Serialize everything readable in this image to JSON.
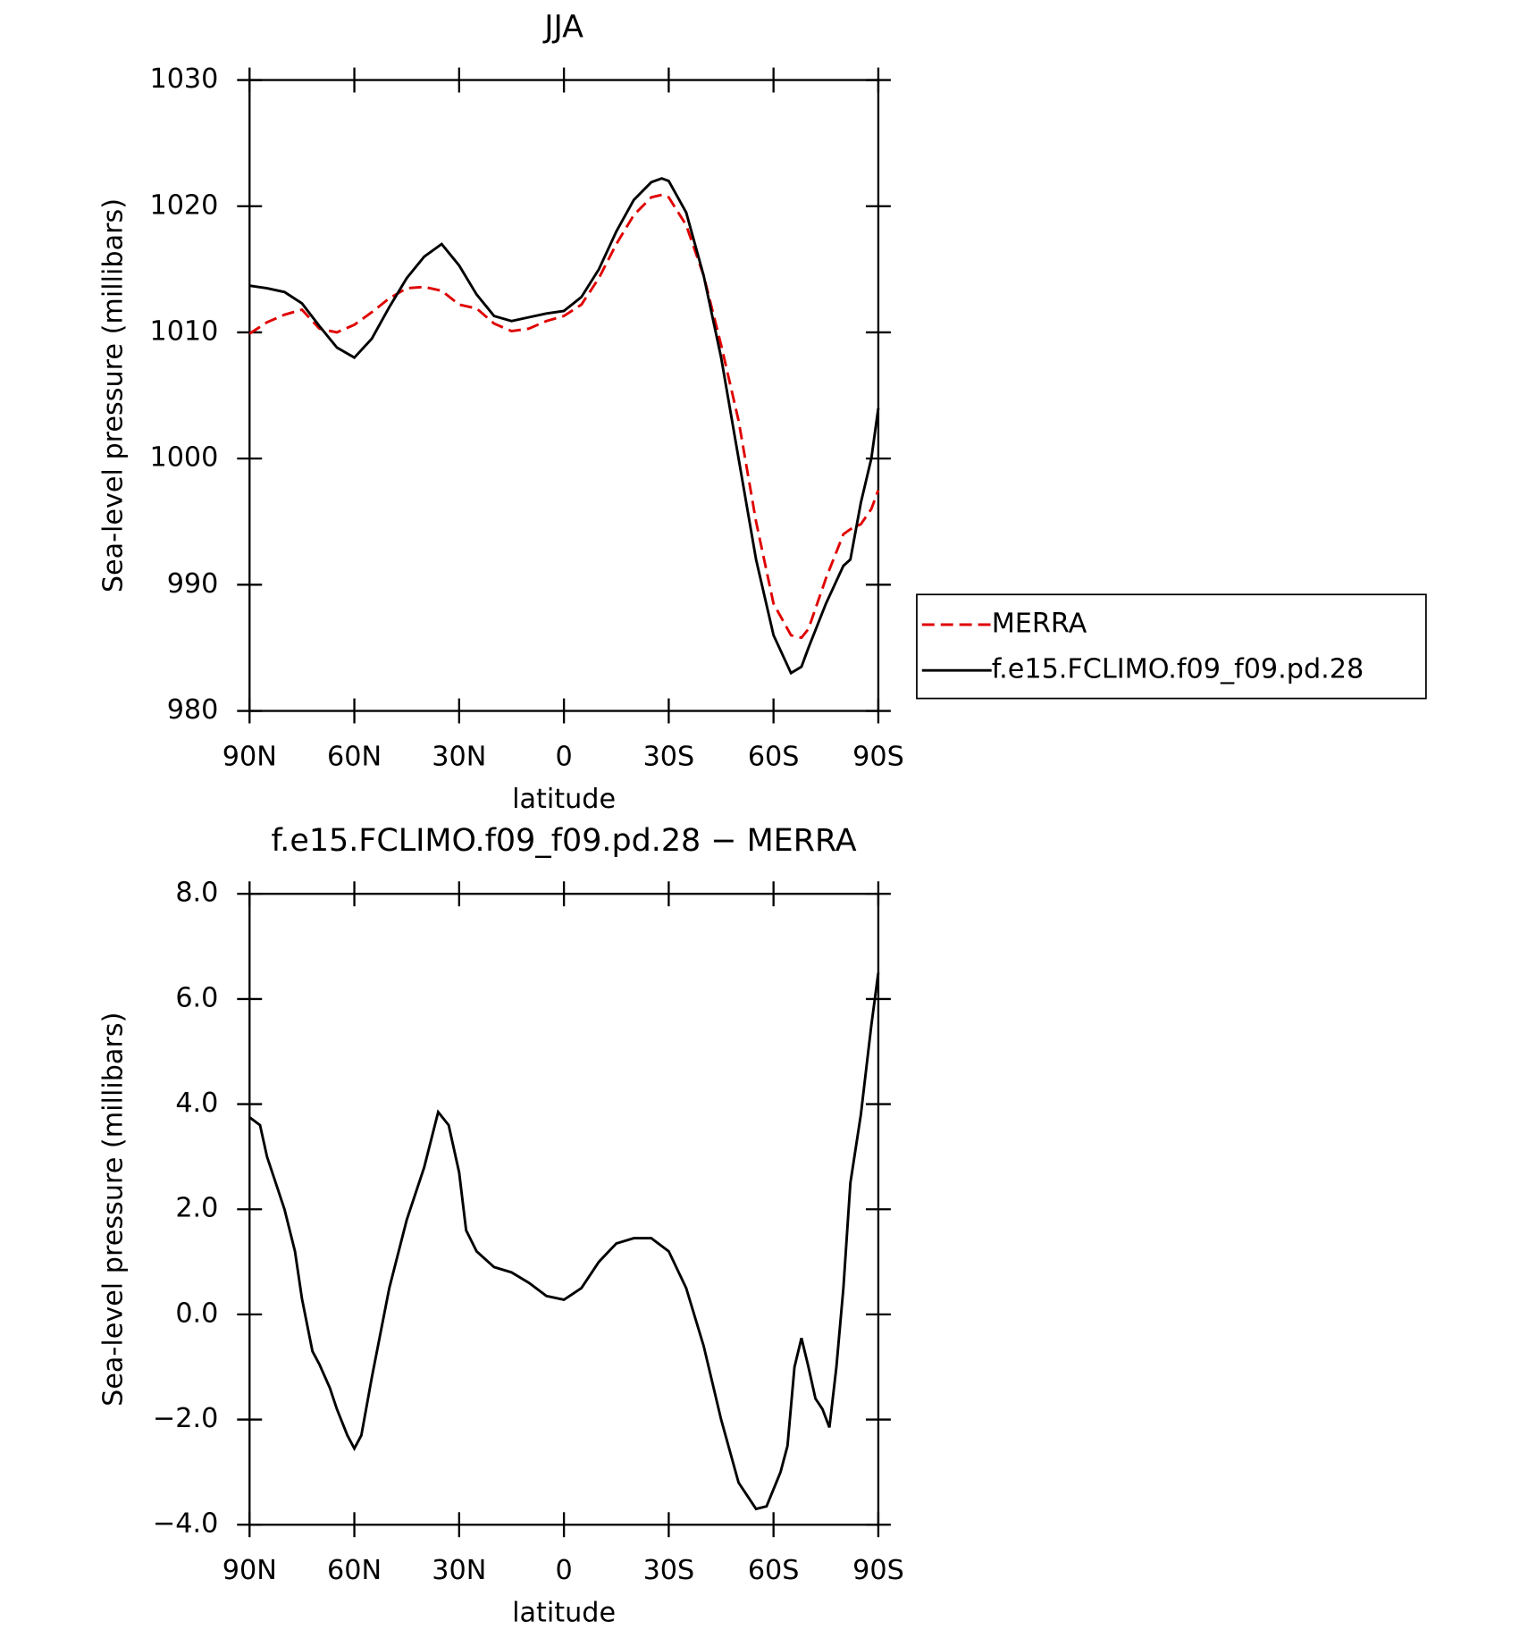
{
  "chart_data": [
    {
      "type": "line",
      "title": "JJA",
      "xlabel": "latitude",
      "ylabel": "Sea-level pressure (millibars)",
      "x": [
        90,
        85,
        80,
        75,
        70,
        65,
        60,
        55,
        50,
        45,
        40,
        35,
        30,
        25,
        20,
        15,
        10,
        5,
        0,
        -5,
        -10,
        -15,
        -20,
        -25,
        -28,
        -30,
        -35,
        -40,
        -45,
        -50,
        -55,
        -60,
        -65,
        -68,
        -70,
        -75,
        -80,
        -82,
        -85,
        -88,
        -90
      ],
      "series": [
        {
          "name": "MERRA",
          "color": "#e00000",
          "dash": "dashed",
          "values": [
            1009.9,
            1010.8,
            1011.4,
            1011.8,
            1010.3,
            1010,
            1010.6,
            1011.6,
            1012.7,
            1013.5,
            1013.6,
            1013.3,
            1012.2,
            1011.9,
            1010.7,
            1010.1,
            1010.3,
            1010.9,
            1011.3,
            1012.2,
            1014.3,
            1017,
            1019.3,
            1020.7,
            1020.9,
            1020.7,
            1018.5,
            1014.5,
            1009,
            1003,
            995,
            988.5,
            986,
            985.8,
            986.5,
            990.5,
            994,
            994.4,
            994.8,
            996,
            997.5
          ]
        },
        {
          "name": "f.e15.FCLIMO.f09_f09.pd.28",
          "color": "#000000",
          "dash": "solid",
          "values": [
            1013.7,
            1013.5,
            1013.2,
            1012.3,
            1010.5,
            1008.8,
            1008,
            1009.5,
            1012,
            1014.3,
            1016,
            1017,
            1015.3,
            1013,
            1011.3,
            1010.9,
            1011.2,
            1011.5,
            1011.7,
            1012.8,
            1015,
            1018,
            1020.5,
            1021.9,
            1022.2,
            1022,
            1019.5,
            1014.5,
            1008,
            1000,
            992,
            986,
            983,
            983.5,
            985,
            988.5,
            991.5,
            992,
            996.5,
            1000,
            1004
          ]
        }
      ],
      "xlim": [
        90,
        -90
      ],
      "xticks": [
        {
          "value": 90,
          "label": "90N"
        },
        {
          "value": 60,
          "label": "60N"
        },
        {
          "value": 30,
          "label": "30N"
        },
        0,
        {
          "value": -30,
          "label": "30S"
        },
        {
          "value": -60,
          "label": "60S"
        },
        {
          "value": -90,
          "label": "90S"
        }
      ],
      "ylim": [
        980,
        1030
      ],
      "yticks": [
        980,
        990,
        1000,
        1010,
        1020,
        1030
      ],
      "legend": "right"
    },
    {
      "type": "line",
      "title": "f.e15.FCLIMO.f09_f09.pd.28 − MERRA",
      "xlabel": "latitude",
      "ylabel": "Sea-level pressure (millibars)",
      "x": [
        90,
        87,
        85,
        82,
        80,
        77,
        75,
        72,
        70,
        67,
        65,
        62,
        60,
        58,
        55,
        50,
        45,
        40,
        36,
        33,
        30,
        28,
        25,
        20,
        15,
        10,
        5,
        0,
        -5,
        -10,
        -15,
        -20,
        -25,
        -30,
        -35,
        -40,
        -45,
        -50,
        -55,
        -58,
        -62,
        -64,
        -66,
        -68,
        -70,
        -72,
        -74,
        -76,
        -78,
        -80,
        -82,
        -85,
        -88,
        -90
      ],
      "series": [
        {
          "color": "#000000",
          "dash": "solid",
          "values": [
            3.75,
            3.6,
            3.0,
            2.4,
            2.0,
            1.2,
            0.3,
            -0.7,
            -0.95,
            -1.4,
            -1.8,
            -2.3,
            -2.55,
            -2.3,
            -1.2,
            0.5,
            1.8,
            2.8,
            3.85,
            3.6,
            2.7,
            1.6,
            1.2,
            0.9,
            0.8,
            0.6,
            0.35,
            0.28,
            0.5,
            1.0,
            1.35,
            1.45,
            1.45,
            1.2,
            0.5,
            -0.6,
            -2.0,
            -3.2,
            -3.7,
            -3.65,
            -3.0,
            -2.5,
            -1.0,
            -0.45,
            -1.0,
            -1.6,
            -1.8,
            -2.15,
            -1.0,
            0.5,
            2.5,
            3.8,
            5.5,
            6.5
          ]
        }
      ],
      "xlim": [
        90,
        -90
      ],
      "xticks": [
        {
          "value": 90,
          "label": "90N"
        },
        {
          "value": 60,
          "label": "60N"
        },
        {
          "value": 30,
          "label": "30N"
        },
        0,
        {
          "value": -30,
          "label": "30S"
        },
        {
          "value": -60,
          "label": "60S"
        },
        {
          "value": -90,
          "label": "90S"
        }
      ],
      "ylim": [
        -4,
        8
      ],
      "yticks": [
        {
          "value": -4,
          "label": "−4.0"
        },
        {
          "value": -2,
          "label": "−2.0"
        },
        {
          "value": 0,
          "label": "0.0"
        },
        {
          "value": 2,
          "label": "2.0"
        },
        {
          "value": 4,
          "label": "4.0"
        },
        {
          "value": 6,
          "label": "6.0"
        },
        {
          "value": 8,
          "label": "8.0"
        }
      ]
    }
  ]
}
